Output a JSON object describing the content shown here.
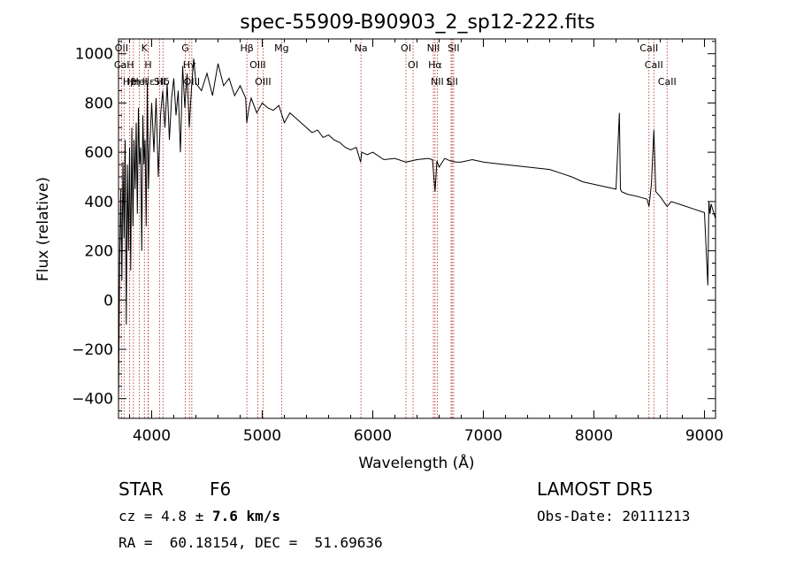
{
  "chart_data": {
    "type": "line",
    "title": "spec-55909-B90903_2_sp12-222.fits",
    "xlabel": "Wavelength (Å)",
    "ylabel": "Flux (relative)",
    "xlim": [
      3700,
      9100
    ],
    "ylim": [
      -480,
      1060
    ],
    "xticks": [
      4000,
      5000,
      6000,
      7000,
      8000,
      9000
    ],
    "yticks": [
      -400,
      -200,
      0,
      200,
      400,
      600,
      800,
      1000
    ],
    "grid": false,
    "series": [
      {
        "x": [
          3700,
          3710,
          3720,
          3730,
          3740,
          3750,
          3760,
          3770,
          3780,
          3790,
          3800,
          3810,
          3820,
          3830,
          3840,
          3850,
          3860,
          3870,
          3880,
          3890,
          3900,
          3910,
          3920,
          3930,
          3940,
          3950,
          3960,
          3970,
          3980,
          3990,
          4000,
          4020,
          4040,
          4060,
          4080,
          4100,
          4120,
          4140,
          4160,
          4180,
          4200,
          4220,
          4240,
          4260,
          4280,
          4300,
          4320,
          4340,
          4360,
          4380,
          4400,
          4450,
          4500,
          4550,
          4600,
          4650,
          4700,
          4750,
          4800,
          4850,
          4860,
          4880,
          4900,
          4950,
          5000,
          5050,
          5100,
          5150,
          5200,
          5250,
          5300,
          5350,
          5400,
          5450,
          5500,
          5550,
          5600,
          5650,
          5700,
          5750,
          5800,
          5850,
          5890,
          5900,
          5950,
          6000,
          6100,
          6200,
          6300,
          6400,
          6500,
          6540,
          6563,
          6580,
          6600,
          6650,
          6700,
          6750,
          6800,
          6900,
          7000,
          7100,
          7200,
          7300,
          7400,
          7500,
          7600,
          7700,
          7800,
          7900,
          8000,
          8100,
          8200,
          8230,
          8240,
          8250,
          8300,
          8400,
          8480,
          8498,
          8520,
          8542,
          8560,
          8600,
          8662,
          8700,
          8800,
          8900,
          9000,
          9030,
          9040,
          9050,
          9060,
          9080,
          9100
        ],
        "y": [
          -420,
          150,
          450,
          80,
          560,
          250,
          650,
          -100,
          550,
          200,
          620,
          120,
          700,
          300,
          650,
          450,
          720,
          350,
          780,
          550,
          620,
          200,
          750,
          550,
          650,
          300,
          880,
          450,
          600,
          700,
          800,
          600,
          820,
          500,
          750,
          850,
          700,
          880,
          650,
          820,
          900,
          750,
          850,
          600,
          950,
          780,
          920,
          700,
          860,
          980,
          880,
          850,
          920,
          830,
          960,
          870,
          900,
          830,
          870,
          820,
          720,
          780,
          820,
          760,
          800,
          780,
          770,
          790,
          720,
          760,
          740,
          720,
          700,
          680,
          690,
          660,
          670,
          650,
          640,
          620,
          610,
          620,
          560,
          600,
          590,
          600,
          570,
          575,
          560,
          570,
          575,
          570,
          440,
          565,
          540,
          575,
          565,
          560,
          560,
          570,
          560,
          555,
          550,
          545,
          540,
          535,
          530,
          515,
          500,
          480,
          470,
          460,
          450,
          760,
          450,
          440,
          430,
          420,
          410,
          380,
          470,
          690,
          440,
          420,
          380,
          400,
          385,
          370,
          355,
          60,
          400,
          350,
          390,
          360,
          330
        ]
      }
    ],
    "lines": [
      {
        "label": "Hβ",
        "x": 4861
      },
      {
        "label": "OIII",
        "x": 4959
      },
      {
        "label": "OIII",
        "x": 5007
      },
      {
        "label": "Mg",
        "x": 5175
      },
      {
        "label": "Na",
        "x": 5893
      },
      {
        "label": "OI",
        "x": 6300
      },
      {
        "label": "OI",
        "x": 6364
      },
      {
        "label": "Hα",
        "x": 6563
      },
      {
        "label": "NII",
        "x": 6548
      },
      {
        "label": "NII",
        "x": 6583
      },
      {
        "label": "SII",
        "x": 6717
      },
      {
        "label": "SII",
        "x": 6731
      },
      {
        "label": "Li",
        "x": 6708
      },
      {
        "label": "CaII",
        "x": 8498
      },
      {
        "label": "CaII",
        "x": 8542
      },
      {
        "label": "CaII",
        "x": 8662
      },
      {
        "label": "K",
        "x": 3934
      },
      {
        "label": "H",
        "x": 3968
      },
      {
        "label": "Hδ",
        "x": 4102
      },
      {
        "label": "G",
        "x": 4304
      },
      {
        "label": "Hγ",
        "x": 4341
      },
      {
        "label": "OIII",
        "x": 4363
      },
      {
        "label": "SII",
        "x": 4072
      },
      {
        "label": "HeI",
        "x": 3889
      },
      {
        "label": "OII",
        "x": 3727
      },
      {
        "label": "CaH",
        "x": 3750
      },
      {
        "label": "Hη",
        "x": 3835
      },
      {
        "label": "Hε",
        "x": 3970
      },
      {
        "label": "Hβ",
        "x": 3800
      }
    ]
  },
  "footer": {
    "object_class": "STAR",
    "subclass": "F6",
    "survey": "LAMOST DR5",
    "cz_text": "cz = 4.8 ± ",
    "cz_err": "7.6 km/s",
    "obs_date": "Obs-Date: 20111213",
    "coords": "RA =  60.18154, DEC =  51.69636"
  }
}
